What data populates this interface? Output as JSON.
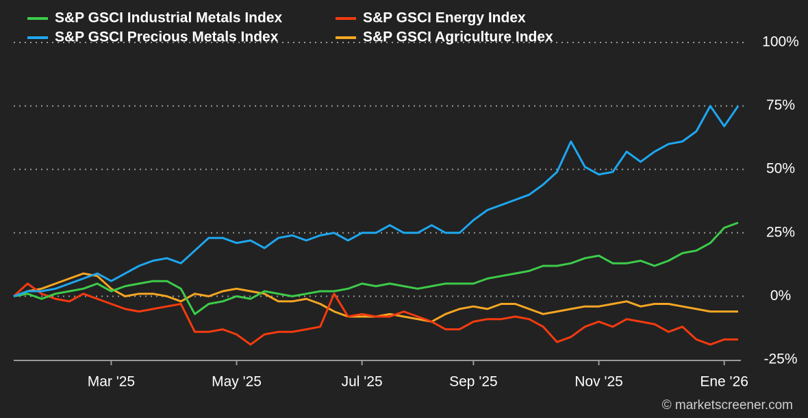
{
  "chart_data": {
    "type": "line",
    "watermark": "© marketscreener.com",
    "categories": [
      null,
      null,
      null,
      null,
      null,
      null,
      null,
      "Mar '25",
      null,
      null,
      null,
      null,
      null,
      null,
      null,
      null,
      "May '25",
      null,
      null,
      null,
      null,
      null,
      null,
      null,
      null,
      "Jul '25",
      null,
      null,
      null,
      null,
      null,
      null,
      null,
      "Sep '25",
      null,
      null,
      null,
      null,
      null,
      null,
      null,
      null,
      "Nov '25",
      null,
      null,
      null,
      null,
      null,
      null,
      null,
      null,
      "Ene '26",
      null
    ],
    "series": [
      {
        "name": "S&P GSCI Industrial Metals Index",
        "color": "#3dcc4a",
        "values": [
          0,
          1,
          -1,
          1,
          2,
          3,
          5,
          2,
          4,
          5,
          6,
          6,
          3,
          -7,
          -3,
          -2,
          0,
          -1,
          2,
          1,
          0,
          1,
          2,
          2,
          3,
          5,
          4,
          5,
          4,
          3,
          4,
          5,
          5,
          5,
          7,
          8,
          9,
          10,
          12,
          12,
          13,
          15,
          16,
          13,
          13,
          14,
          12,
          14,
          17,
          18,
          21,
          27,
          29
        ]
      },
      {
        "name": "S&P GSCI Energy Index",
        "color": "#f53b0f",
        "values": [
          0,
          5,
          1,
          -1,
          -2,
          1,
          -1,
          -3,
          -5,
          -6,
          -5,
          -4,
          -3,
          -14,
          -14,
          -13,
          -15,
          -19,
          -15,
          -14,
          -14,
          -13,
          -12,
          1,
          -8,
          -7,
          -8,
          -8,
          -6,
          -8,
          -10,
          -13,
          -13,
          -10,
          -9,
          -9,
          -8,
          -9,
          -12,
          -18,
          -16,
          -12,
          -10,
          -12,
          -9,
          -10,
          -11,
          -14,
          -12,
          -17,
          -19,
          -17,
          -17
        ]
      },
      {
        "name": "S&P GSCI Precious Metals Index",
        "color": "#1ea7f0",
        "values": [
          0,
          2,
          2,
          3,
          5,
          7,
          9,
          6,
          9,
          12,
          14,
          15,
          13,
          18,
          23,
          23,
          21,
          22,
          19,
          23,
          24,
          22,
          24,
          25,
          22,
          25,
          25,
          28,
          25,
          25,
          28,
          25,
          25,
          30,
          34,
          36,
          38,
          40,
          44,
          49,
          61,
          51,
          48,
          49,
          57,
          53,
          57,
          60,
          61,
          65,
          75,
          67,
          75
        ]
      },
      {
        "name": "S&P GSCI Agriculture Index",
        "color": "#f5a623",
        "values": [
          0,
          2,
          3,
          5,
          7,
          9,
          8,
          3,
          0,
          1,
          1,
          0,
          -2,
          1,
          0,
          2,
          3,
          2,
          1,
          -2,
          -2,
          -1,
          -3,
          -6,
          -8,
          -8,
          -8,
          -7,
          -8,
          -9,
          -10,
          -7,
          -5,
          -4,
          -5,
          -3,
          -3,
          -5,
          -7,
          -6,
          -5,
          -4,
          -4,
          -3,
          -2,
          -4,
          -3,
          -3,
          -4,
          -5,
          -6,
          -6,
          -6
        ]
      }
    ],
    "ylim": [
      -25,
      100
    ],
    "yticks": [
      {
        "value": -25,
        "label": "-25%"
      },
      {
        "value": 0,
        "label": "0%"
      },
      {
        "value": 25,
        "label": "25%"
      },
      {
        "value": 50,
        "label": "50%"
      },
      {
        "value": 75,
        "label": "75%"
      },
      {
        "value": 100,
        "label": "100%"
      }
    ],
    "grid": true
  }
}
